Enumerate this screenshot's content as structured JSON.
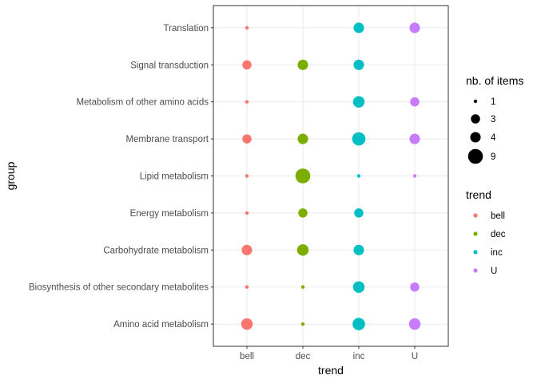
{
  "chart_data": {
    "type": "scatter",
    "xlabel": "trend",
    "ylabel": "group",
    "x_categories": [
      "bell",
      "dec",
      "inc",
      "U"
    ],
    "y_categories": [
      "Amino acid metabolism",
      "Biosynthesis of other secondary metabolites",
      "Carbohydrate metabolism",
      "Energy metabolism",
      "Lipid metabolism",
      "Membrane transport",
      "Metabolism of other amino acids",
      "Signal transduction",
      "Translation"
    ],
    "points": [
      {
        "group": "Translation",
        "trend": "bell",
        "n": 1
      },
      {
        "group": "Translation",
        "trend": "inc",
        "n": 4
      },
      {
        "group": "Translation",
        "trend": "U",
        "n": 4
      },
      {
        "group": "Signal transduction",
        "trend": "bell",
        "n": 3
      },
      {
        "group": "Signal transduction",
        "trend": "dec",
        "n": 4
      },
      {
        "group": "Signal transduction",
        "trend": "inc",
        "n": 4
      },
      {
        "group": "Metabolism of other amino acids",
        "trend": "bell",
        "n": 1
      },
      {
        "group": "Metabolism of other amino acids",
        "trend": "inc",
        "n": 5
      },
      {
        "group": "Metabolism of other amino acids",
        "trend": "U",
        "n": 3
      },
      {
        "group": "Membrane transport",
        "trend": "bell",
        "n": 3
      },
      {
        "group": "Membrane transport",
        "trend": "dec",
        "n": 4
      },
      {
        "group": "Membrane transport",
        "trend": "inc",
        "n": 7
      },
      {
        "group": "Membrane transport",
        "trend": "U",
        "n": 4
      },
      {
        "group": "Lipid metabolism",
        "trend": "bell",
        "n": 1
      },
      {
        "group": "Lipid metabolism",
        "trend": "dec",
        "n": 9
      },
      {
        "group": "Lipid metabolism",
        "trend": "inc",
        "n": 1
      },
      {
        "group": "Lipid metabolism",
        "trend": "U",
        "n": 1
      },
      {
        "group": "Energy metabolism",
        "trend": "bell",
        "n": 1
      },
      {
        "group": "Energy metabolism",
        "trend": "dec",
        "n": 3
      },
      {
        "group": "Energy metabolism",
        "trend": "inc",
        "n": 3
      },
      {
        "group": "Carbohydrate metabolism",
        "trend": "bell",
        "n": 4
      },
      {
        "group": "Carbohydrate metabolism",
        "trend": "dec",
        "n": 5
      },
      {
        "group": "Carbohydrate metabolism",
        "trend": "inc",
        "n": 4
      },
      {
        "group": "Biosynthesis of other secondary metabolites",
        "trend": "bell",
        "n": 1
      },
      {
        "group": "Biosynthesis of other secondary metabolites",
        "trend": "dec",
        "n": 1
      },
      {
        "group": "Biosynthesis of other secondary metabolites",
        "trend": "inc",
        "n": 5
      },
      {
        "group": "Biosynthesis of other secondary metabolites",
        "trend": "U",
        "n": 3
      },
      {
        "group": "Amino acid metabolism",
        "trend": "bell",
        "n": 5
      },
      {
        "group": "Amino acid metabolism",
        "trend": "dec",
        "n": 1
      },
      {
        "group": "Amino acid metabolism",
        "trend": "inc",
        "n": 6
      },
      {
        "group": "Amino acid metabolism",
        "trend": "U",
        "n": 5
      }
    ],
    "grid": true,
    "legend_position": "right",
    "size_legend": {
      "title": "nb. of items",
      "breaks": [
        1,
        3,
        4,
        9
      ]
    },
    "color_legend": {
      "title": "trend",
      "entries": [
        {
          "label": "bell",
          "color": "#F8766D"
        },
        {
          "label": "dec",
          "color": "#7CAE00"
        },
        {
          "label": "inc",
          "color": "#00BFC4"
        },
        {
          "label": "U",
          "color": "#C77CFF"
        }
      ]
    }
  }
}
